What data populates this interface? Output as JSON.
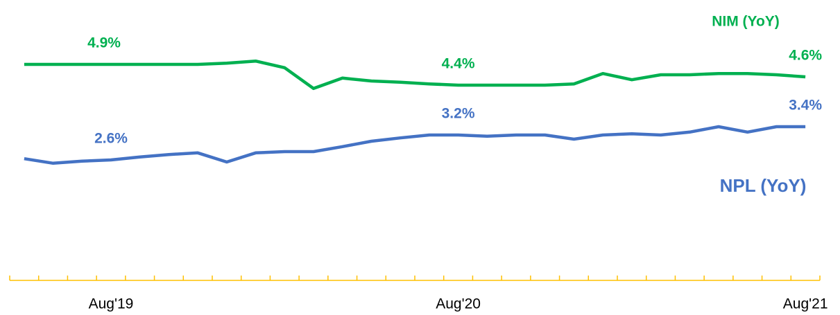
{
  "chart_data": {
    "type": "line",
    "categories": [
      null,
      null,
      null,
      "Aug'19",
      null,
      null,
      null,
      null,
      null,
      null,
      null,
      null,
      null,
      null,
      null,
      "Aug'20",
      null,
      null,
      null,
      null,
      null,
      null,
      null,
      null,
      null,
      null,
      null,
      "Aug'21"
    ],
    "series": [
      {
        "name": "NIM (YoY)",
        "color": "#00b050",
        "values": [
          4.9,
          4.9,
          4.9,
          4.9,
          4.9,
          4.9,
          4.9,
          4.93,
          4.98,
          4.82,
          4.32,
          4.57,
          4.5,
          4.47,
          4.43,
          4.4,
          4.4,
          4.4,
          4.4,
          4.43,
          4.68,
          4.53,
          4.65,
          4.65,
          4.68,
          4.68,
          4.65,
          4.6
        ],
        "value_labels": [
          "4.9%",
          null,
          null,
          null,
          null,
          null,
          null,
          null,
          null,
          null,
          null,
          null,
          null,
          null,
          null,
          "4.4%",
          null,
          null,
          null,
          null,
          null,
          null,
          null,
          null,
          null,
          null,
          null,
          "4.6%"
        ]
      },
      {
        "name": "NPL (YoY)",
        "color": "#4472c4",
        "values": [
          2.63,
          2.52,
          2.57,
          2.6,
          2.67,
          2.73,
          2.77,
          2.55,
          2.77,
          2.8,
          2.8,
          2.92,
          3.05,
          3.13,
          3.2,
          3.2,
          3.17,
          3.2,
          3.2,
          3.1,
          3.2,
          3.23,
          3.2,
          3.27,
          3.4,
          3.27,
          3.4,
          3.4
        ],
        "value_labels": [
          null,
          null,
          null,
          "2.6%",
          null,
          null,
          null,
          null,
          null,
          null,
          null,
          null,
          null,
          null,
          null,
          "3.2%",
          null,
          null,
          null,
          null,
          null,
          null,
          null,
          null,
          null,
          null,
          null,
          "3.4%"
        ]
      }
    ],
    "ylim": [
      0,
      6
    ],
    "axis_color": "#ffc000"
  }
}
